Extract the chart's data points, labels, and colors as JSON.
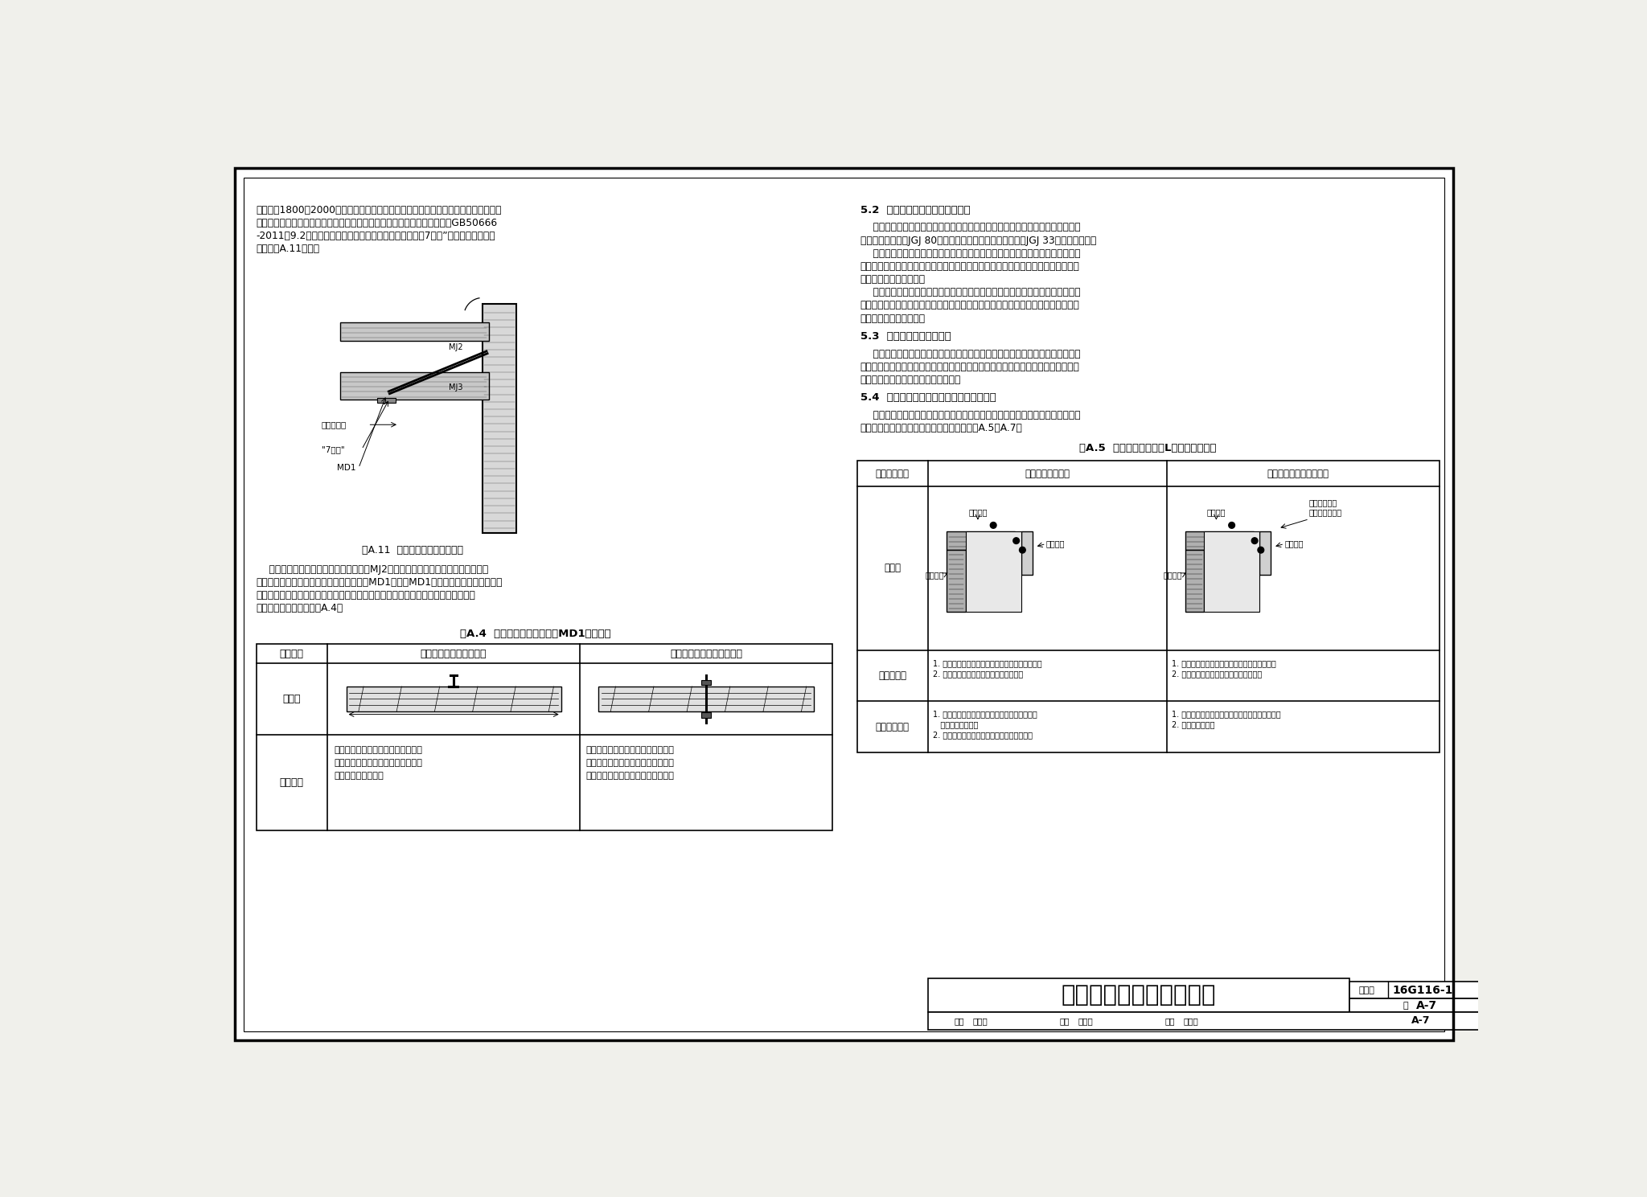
{
  "bg_color": "#f0f0eb",
  "page_bg": "#ffffff",
  "border_color": "#000000",
  "title_main": "预制混凝土剪力墙外墙板",
  "atlas_no": "16G116-1",
  "page_no": "A-7",
  "left_text_block": [
    "在距楼面1800～2000高的位置。临时支撒杆及预埋件的设计主要考虑风荷载和外防护",
    "架施工荷载，应考虑施工安全系数，并应符合《混凝土结构工程施工规范》GB50666",
    "-2011第9.2节的规定。目前较为常用的临时支撒下端采用7字码”定位并固定，支撒",
    "方式见图A.11所示。"
  ],
  "fig_caption": "图A.11  预制外墙板临时固定方式",
  "mid_text_block": [
    "    临时支撒一端与预制外墙板上预埋联母MJ2连接，预制外墙板设计时应进行相关计",
    "算分析，另一端与叠合楼板上设置的预埋件MD1连接，MD1常见的预埋件理设方式有两",
    "种，在叠合楼板预制底板上预留埋件，或在现场打孔对穿螺气固定在楼板上，二种不",
    "同的埋件固定方式详见表A.4。"
  ],
  "table_a4_title": "表A.4  楼板上临时支撒预埋件MD1设计方法",
  "table_a4_col1": "设计方法",
  "table_a4_col2": "叠合楼板预制底板上预埋",
  "table_a4_col3": "在浇筑完的楼板做对穿螺栋",
  "table_a4_row1": "示意图",
  "table_a4_row2": "施工方法",
  "table_a4_text_col2": [
    "在预制构件生产时完成预埋，预埋质",
    "量安全可靠，但需要在设计阶段精确",
    "确定施工支撒位置。"
  ],
  "table_a4_text_col3": [
    "在浇筑完楼板混凝土后打孔做对穿螺",
    "栋，在施工现场定位更为容易，缺点",
    "是对已浇筑的混凝土楼板局部破坏。"
  ],
  "right_section_52": "5.2  施工防护及施工设备用预埋件",
  "right_text_52": [
    "    预制外墙板施工过程中应采取安全措施，应符合现行行业标准《建筑施工高处作",
    "业安全技术规范》JGJ 80、《建筑机械使用安全技术规程》JGJ 33等的相关规定。",
    "    施工过程中应设安全防护网，常见的有外挑三角架和外挂爬架做法，预制外墙板",
    "构件深化设计中应对施工外架固定用预埋件进行设计，考虑施工外架荷载及施工活荷",
    "载对预制外墙板的影响。",
    "    预制外墙板深化设计时还应考虑塔吊附壁、施工电梯、脚手架固定等其他施工措",
    "施的影响，构件深化设计单位、构件生产单位、施工单位应提前确定相关预埋方案，",
    "在构件生产时提前预埋。"
  ],
  "right_section_53": "5.3  预制外墙板悘挂预埋件",
  "right_text_53": [
    "    预制外墙设置的空调架、外墙钓雨棚、装饰构件等不得直接固定在外叶墙板上，",
    "其预埋件应预埋在内叶承重墙板中，连接相关悬挑受力钓架后对外叶墙板洞口进行封",
    "堫，预埋件及连接做法均应计算确定。"
  ],
  "right_section_54": "5.4  后浇段混凝土施工模板固定及加强措施",
  "right_text_54": [
    "    后浇段浇筑混凝土时，会对外叶墙板产生侧压力，为了防止外叶墙板变形甚至开",
    "裂，应采取可靠的施工措施，常用的做法见表A.5～A.7。"
  ],
  "table_a5_title": "表A.5  预制外墙模板角部L型节点加强措施",
  "ta5_header_col1": "模板固定方式",
  "ta5_header_col2": "后浇段设对拉螺杆",
  "ta5_header_col3": "预制构件部位设对拉螺杆",
  "ta5_row1": "示意图",
  "ta5_row2": "防胀模措施",
  "ta5_row3": "预留预埋部位",
  "ta5_diag1_labels": [
    "加劲骨棒",
    "加劲骨棒",
    "内侧模板"
  ],
  "ta5_diag2_labels": [
    "加劲骨棒",
    "对拉固定螺杆\n位于加劲骨棒处",
    "加劲骨棒",
    "内侧模板"
  ],
  "ta5_text_col2_row2": [
    "1. 在预制转角模板外侧设置加劲骨棒停止至墙模。",
    "2. 内侧浇混凝土墙上设模板上加劲骨棒。"
  ],
  "ta5_text_col3_row2": [
    "1. 在预制转角模板外侧设置加劲骨棒停止墙板。",
    "2. 内侧浇混凝土墙上设模板上加劲骨棒。"
  ],
  "ta5_text_col2_row3": [
    "1. 在对拉螺栋处设置管替，对拉螺栋拉出时减少",
    "   外保温板的破坏。",
    "2. 在楼板上开孔，预制构件中无需留置埋件。"
  ],
  "ta5_text_col3_row3": [
    "1. 需在预制外墙模板中预留锁固孔，后期需封堪。",
    "2. 楼板不需开孔。"
  ],
  "footer_title": "预制混凝土剪力墙外墙板",
  "footer_atlas": "16G116-1",
  "footer_page": "A-7",
  "footer_review": "高志墓",
  "footer_approve": "王开飞",
  "footer_design": "许文杰"
}
